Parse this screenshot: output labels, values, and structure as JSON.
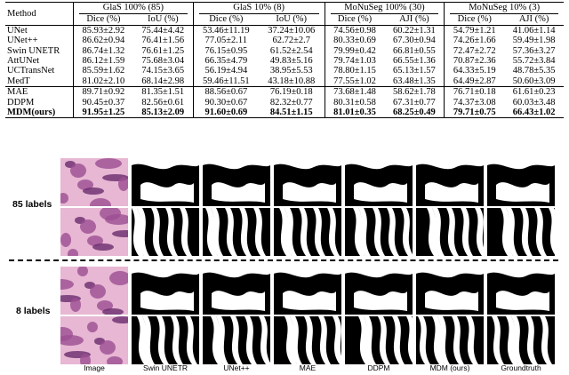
{
  "table": {
    "method_header": "Method",
    "groups": [
      "GlaS 100% (85)",
      "GlaS 10% (8)",
      "MoNuSeg 100% (30)",
      "MoNuSeg 10% (3)"
    ],
    "subheaders": [
      "Dice (%)",
      "IoU (%)",
      "Dice (%)",
      "IoU (%)",
      "Dice (%)",
      "AJI (%)",
      "Dice (%)",
      "AJI (%)"
    ],
    "rows": [
      {
        "method": "UNet",
        "values": [
          "85.93±2.92",
          "75.44±4.42",
          "53.46±11.19",
          "37.24±10.06",
          "74.56±0.98",
          "60.22±1.31",
          "54.79±1.21",
          "41.06±1.14"
        ]
      },
      {
        "method": "UNet++",
        "values": [
          "86.62±0.94",
          "76.41±1.56",
          "77.05±2.11",
          "62.72±2.7",
          "80.33±0.69",
          "67.30±0.94",
          "74.26±1.66",
          "59.49±1.98"
        ]
      },
      {
        "method": "Swin UNETR",
        "values": [
          "86.74±1.32",
          "76.61±1.25",
          "76.15±0.95",
          "61.52±2.54",
          "79.99±0.42",
          "66.81±0.55",
          "72.47±2.72",
          "57.36±3.27"
        ]
      },
      {
        "method": "AttUNet",
        "values": [
          "86.12±1.59",
          "75.68±3.04",
          "66.35±4.79",
          "49.83±5.16",
          "79.74±1.03",
          "66.55±1.36",
          "70.87±2.36",
          "55.72±3.84"
        ]
      },
      {
        "method": "UCTransNet",
        "values": [
          "85.59±1.62",
          "74.15±3.65",
          "56.19±4.94",
          "38.95±5.53",
          "78.80±1.15",
          "65.13±1.57",
          "64.33±5.19",
          "48.78±5.35"
        ]
      },
      {
        "method": "MedT",
        "values": [
          "81.02±2.10",
          "68.14±2.98",
          "59.46±11.51",
          "43.18±10.88",
          "77.55±1.02",
          "63.48±1.35",
          "64.49±2.87",
          "50.60±3.09"
        ]
      },
      {
        "method": "MAE",
        "values": [
          "89.71±0.92",
          "81.35±1.51",
          "88.56±0.67",
          "76.19±0.18",
          "73.68±1.48",
          "58.62±1.78",
          "76.71±0.18",
          "61.61±0.23"
        ]
      },
      {
        "method": "DDPM",
        "values": [
          "90.45±0.37",
          "82.56±0.61",
          "90.30±0.67",
          "82.32±0.77",
          "80.31±0.58",
          "67.31±0.77",
          "74.37±3.08",
          "60.03±3.48"
        ]
      },
      {
        "method": "MDM(ours)",
        "values": [
          "91.95±1.25",
          "85.13±2.09",
          "91.60±0.69",
          "84.51±1.15",
          "81.01±0.35",
          "68.25±0.49",
          "79.71±0.75",
          "66.43±1.02"
        ]
      }
    ]
  },
  "figure": {
    "row_labels": [
      "85 labels",
      "8 labels"
    ],
    "column_labels": [
      "Image",
      "Swin UNETR",
      "UNet++",
      "MAE",
      "DDPM",
      "MDM (ours)",
      "Groundtruth"
    ],
    "colors": {
      "tissue_bg": "#e7b7d3",
      "tissue_stain": "#9c4d92",
      "tissue_dark": "#6a2a6e",
      "mask_bg": "#000000",
      "mask_fg": "#ffffff"
    }
  }
}
